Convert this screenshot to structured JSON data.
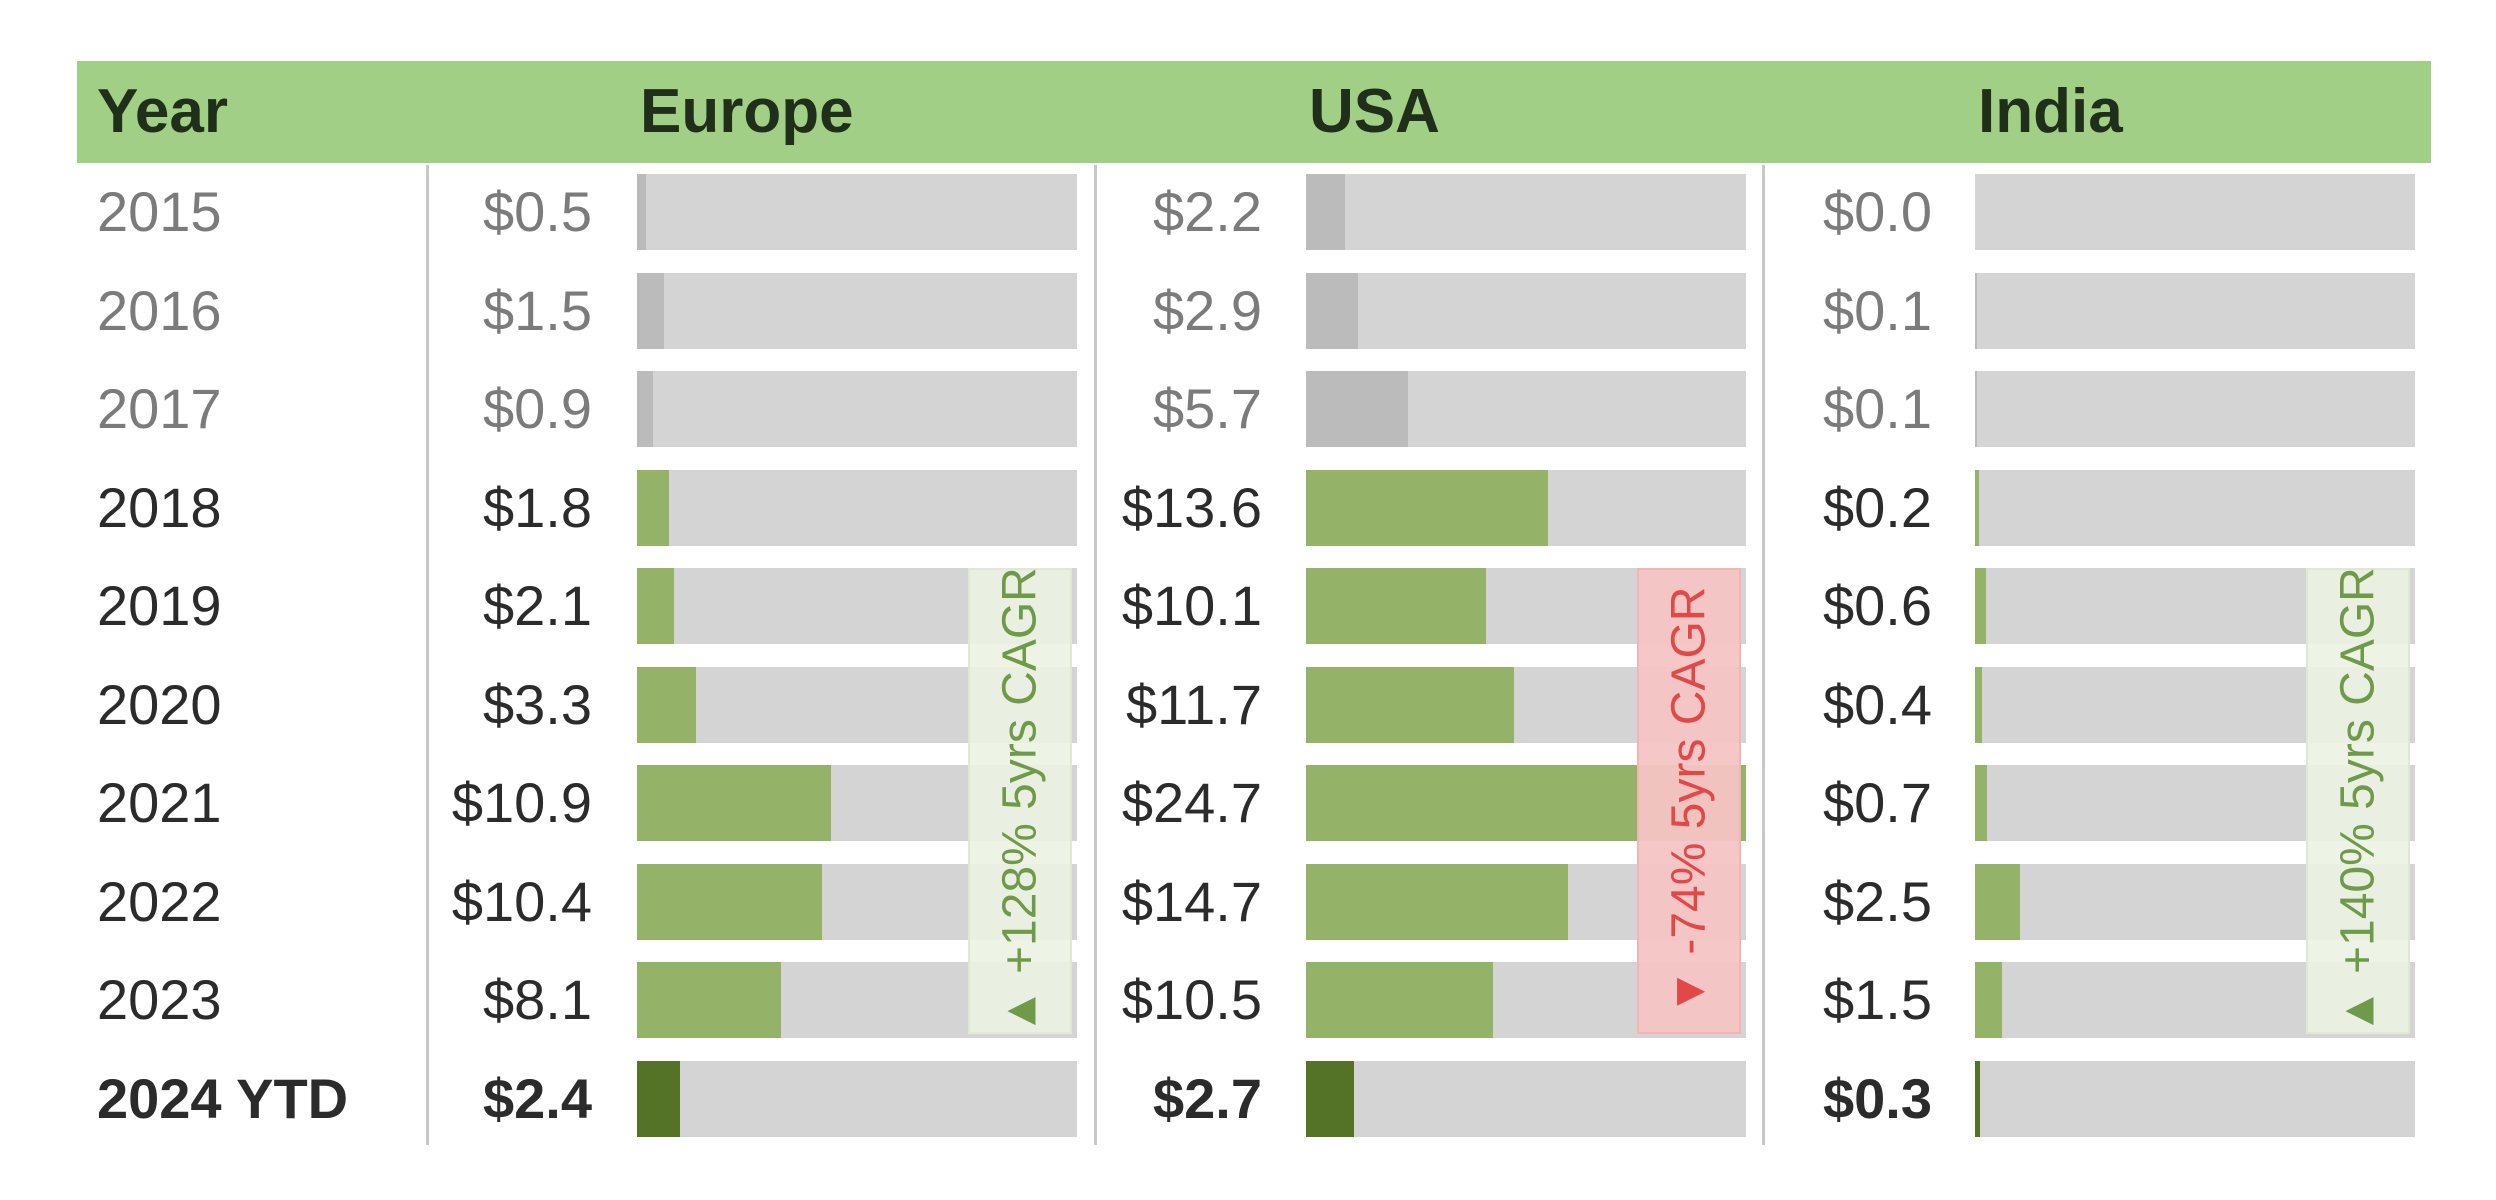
{
  "chart_data": {
    "type": "table",
    "title": "",
    "columns": [
      "Year",
      "Europe",
      "USA",
      "India"
    ],
    "currency_prefix": "$",
    "years": [
      "2015",
      "2016",
      "2017",
      "2018",
      "2019",
      "2020",
      "2021",
      "2022",
      "2023",
      "2024 YTD"
    ],
    "historical_years": [
      "2015",
      "2016",
      "2017"
    ],
    "ytd_year": "2024 YTD",
    "series": [
      {
        "name": "Europe",
        "values": [
          0.5,
          1.5,
          0.9,
          1.8,
          2.1,
          3.3,
          10.9,
          10.4,
          8.1,
          2.4
        ],
        "labels": [
          "$0.5",
          "$1.5",
          "$0.9",
          "$1.8",
          "$2.1",
          "$3.3",
          "$10.9",
          "$10.4",
          "$8.1",
          "$2.4"
        ],
        "cagr": {
          "label": "+128% 5yrs CAGR",
          "arrow": "▲",
          "direction": "up"
        }
      },
      {
        "name": "USA",
        "values": [
          2.2,
          2.9,
          5.7,
          13.6,
          10.1,
          11.7,
          24.7,
          14.7,
          10.5,
          2.7
        ],
        "labels": [
          "$2.2",
          "$2.9",
          "$5.7",
          "$13.6",
          "$10.1",
          "$11.7",
          "$24.7",
          "$14.7",
          "$10.5",
          "$2.7"
        ],
        "cagr": {
          "label": "-74% 5yrs CAGR",
          "arrow": "▼",
          "direction": "down"
        }
      },
      {
        "name": "India",
        "values": [
          0.0,
          0.1,
          0.1,
          0.2,
          0.6,
          0.4,
          0.7,
          2.5,
          1.5,
          0.3
        ],
        "labels": [
          "$0.0",
          "$0.1",
          "$0.1",
          "$0.2",
          "$0.6",
          "$0.4",
          "$0.7",
          "$2.5",
          "$1.5",
          "$0.3"
        ],
        "cagr": {
          "label": "+140% 5yrs CAGR",
          "arrow": "▲",
          "direction": "up"
        }
      }
    ],
    "colors": {
      "header_band": "#a1cf86",
      "bar_current": "#94b368",
      "bar_historical": "#bbbbbb",
      "bar_ytd": "#547326",
      "track": "#d4d4d4",
      "cagr_up_text": "#6e9a4a",
      "cagr_down_text": "#e14848"
    }
  }
}
